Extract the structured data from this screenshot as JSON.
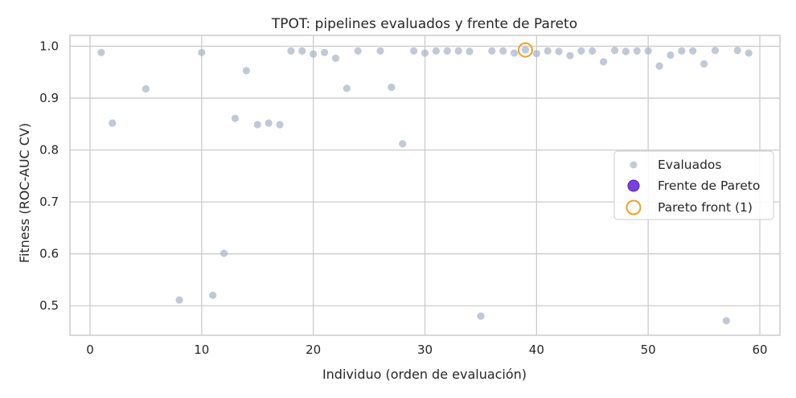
{
  "chart_data": {
    "type": "scatter",
    "title": "TPOT: pipelines evaluados y frente de Pareto",
    "xlabel": "Individuo (orden de evaluación)",
    "ylabel": "Fitness (ROC-AUC CV)",
    "xlim": [
      -1.8,
      61.8
    ],
    "ylim": [
      0.443,
      1.021
    ],
    "xticks": [
      0,
      10,
      20,
      30,
      40,
      50,
      60
    ],
    "yticks": [
      0.5,
      0.6,
      0.7,
      0.8,
      0.9,
      1.0
    ],
    "ytick_labels": [
      "0.5",
      "0.6",
      "0.7",
      "0.8",
      "0.9",
      "1.0"
    ],
    "grid": true,
    "legend_position": "center-right",
    "colors": {
      "evaluated": "#a9b4c8",
      "pareto_fill": "#7b3fe4",
      "pareto_edge": "#4b1fa0",
      "highlight": "#f0a020",
      "grid": "#cccccc",
      "spine": "#cccccc"
    },
    "series": [
      {
        "name": "Evaluados",
        "x": [
          1,
          2,
          5,
          8,
          10,
          11,
          12,
          13,
          14,
          15,
          16,
          17,
          18,
          19,
          20,
          21,
          22,
          23,
          24,
          26,
          27,
          28,
          29,
          30,
          31,
          32,
          33,
          34,
          35,
          36,
          37,
          38,
          39,
          40,
          41,
          42,
          43,
          44,
          45,
          46,
          47,
          48,
          49,
          50,
          51,
          52,
          53,
          54,
          55,
          56,
          57,
          58,
          59
        ],
        "y": [
          0.988,
          0.852,
          0.918,
          0.511,
          0.988,
          0.52,
          0.601,
          0.861,
          0.953,
          0.849,
          0.852,
          0.849,
          0.991,
          0.991,
          0.985,
          0.988,
          0.977,
          0.919,
          0.991,
          0.991,
          0.921,
          0.812,
          0.991,
          0.987,
          0.991,
          0.991,
          0.991,
          0.99,
          0.48,
          0.991,
          0.991,
          0.987,
          0.993,
          0.986,
          0.991,
          0.99,
          0.982,
          0.991,
          0.991,
          0.97,
          0.992,
          0.99,
          0.991,
          0.991,
          0.962,
          0.983,
          0.991,
          0.991,
          0.966,
          0.992,
          0.471,
          0.992,
          0.987
        ]
      },
      {
        "name": "Frente de Pareto",
        "x": [],
        "y": []
      },
      {
        "name": "Pareto front (1)",
        "x": [
          39
        ],
        "y": [
          0.993
        ]
      }
    ],
    "legend": [
      "Evaluados",
      "Frente de Pareto",
      "Pareto front (1)"
    ]
  }
}
